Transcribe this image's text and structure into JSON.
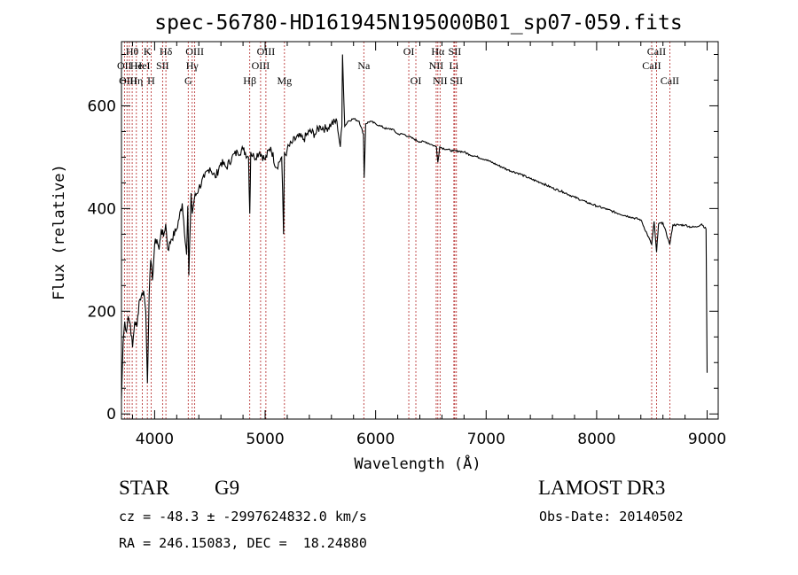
{
  "chart_data": {
    "type": "line",
    "title": "spec-56780-HD161945N195000B01_sp07-059.fits",
    "xlabel": "Wavelength (Å)",
    "ylabel": "Flux (relative)",
    "xlim": [
      3700,
      9100
    ],
    "ylim": [
      -10,
      725
    ],
    "xticks": [
      4000,
      5000,
      6000,
      7000,
      8000,
      9000
    ],
    "yticks": [
      0,
      200,
      400,
      600
    ],
    "grid": false,
    "series": [
      {
        "x": [
          3700,
          3715,
          3730,
          3745,
          3760,
          3780,
          3800,
          3820,
          3840,
          3860,
          3880,
          3900,
          3920,
          3935,
          3950,
          3965,
          3980,
          4000,
          4020,
          4040,
          4060,
          4080,
          4100,
          4120,
          4150,
          4200,
          4250,
          4290,
          4300,
          4310,
          4330,
          4340,
          4360,
          4400,
          4450,
          4500,
          4550,
          4600,
          4650,
          4700,
          4750,
          4800,
          4850,
          4861,
          4870,
          4900,
          4950,
          5000,
          5050,
          5100,
          5150,
          5167,
          5175,
          5183,
          5200,
          5250,
          5300,
          5350,
          5400,
          5450,
          5500,
          5550,
          5600,
          5650,
          5680,
          5695,
          5700,
          5720,
          5750,
          5800,
          5850,
          5890,
          5896,
          5910,
          5950,
          6000,
          6050,
          6100,
          6150,
          6200,
          6250,
          6300,
          6350,
          6400,
          6450,
          6500,
          6550,
          6563,
          6580,
          6600,
          6650,
          6700,
          6750,
          6800,
          6850,
          6900,
          7000,
          7100,
          7200,
          7300,
          7400,
          7500,
          7600,
          7700,
          7800,
          7900,
          8000,
          8100,
          8200,
          8300,
          8400,
          8498,
          8520,
          8542,
          8560,
          8600,
          8662,
          8690,
          8750,
          8800,
          8850,
          8900,
          8950,
          8990,
          9000
        ],
        "values": [
          30,
          140,
          180,
          160,
          190,
          175,
          130,
          180,
          170,
          220,
          230,
          240,
          200,
          60,
          230,
          300,
          260,
          330,
          340,
          320,
          360,
          345,
          370,
          320,
          340,
          360,
          410,
          310,
          405,
          270,
          430,
          390,
          420,
          440,
          460,
          480,
          460,
          490,
          480,
          500,
          510,
          515,
          500,
          390,
          510,
          500,
          510,
          495,
          520,
          480,
          500,
          350,
          510,
          505,
          515,
          530,
          540,
          535,
          550,
          545,
          560,
          555,
          565,
          570,
          520,
          560,
          700,
          560,
          570,
          575,
          570,
          545,
          460,
          565,
          570,
          565,
          560,
          555,
          555,
          545,
          545,
          540,
          535,
          530,
          530,
          525,
          520,
          490,
          520,
          518,
          515,
          512,
          512,
          510,
          505,
          502,
          495,
          485,
          475,
          468,
          458,
          450,
          440,
          432,
          422,
          413,
          405,
          398,
          390,
          384,
          378,
          330,
          375,
          315,
          370,
          372,
          330,
          368,
          368,
          368,
          364,
          364,
          370,
          360,
          80
        ]
      }
    ],
    "line_labels": [
      {
        "text": "Hθ",
        "x": 3797,
        "row": 1
      },
      {
        "text": "OII",
        "x": 3727,
        "row": 2
      },
      {
        "text": "OIII",
        "x": 3760,
        "row": 3
      },
      {
        "text": "He",
        "x": 3835,
        "row": 2
      },
      {
        "text": "Hη",
        "x": 3835,
        "row": 3
      },
      {
        "text": "K",
        "x": 3934,
        "row": 1
      },
      {
        "text": "HeI",
        "x": 3889,
        "row": 2
      },
      {
        "text": "H",
        "x": 3968,
        "row": 3
      },
      {
        "text": "SII",
        "x": 4072,
        "row": 2
      },
      {
        "text": "Hδ",
        "x": 4102,
        "row": 1
      },
      {
        "text": "OIII",
        "x": 4363,
        "row": 1
      },
      {
        "text": "Hγ",
        "x": 4340,
        "row": 2
      },
      {
        "text": "G",
        "x": 4304,
        "row": 3
      },
      {
        "text": "Hβ",
        "x": 4861,
        "row": 3
      },
      {
        "text": "OIII",
        "x": 5007,
        "row": 1
      },
      {
        "text": "OIII",
        "x": 4959,
        "row": 2
      },
      {
        "text": "Mg",
        "x": 5175,
        "row": 3
      },
      {
        "text": "Na",
        "x": 5893,
        "row": 2
      },
      {
        "text": "OI",
        "x": 6300,
        "row": 1
      },
      {
        "text": "OI",
        "x": 6364,
        "row": 3
      },
      {
        "text": "Hα",
        "x": 6563,
        "row": 1
      },
      {
        "text": "NII",
        "x": 6548,
        "row": 2
      },
      {
        "text": "NII",
        "x": 6583,
        "row": 3
      },
      {
        "text": "SII",
        "x": 6716,
        "row": 1
      },
      {
        "text": "Li",
        "x": 6708,
        "row": 2
      },
      {
        "text": "SII",
        "x": 6731,
        "row": 3
      },
      {
        "text": "CaII",
        "x": 8542,
        "row": 1
      },
      {
        "text": "CaII",
        "x": 8498,
        "row": 2
      },
      {
        "text": "CaII",
        "x": 8662,
        "row": 3
      }
    ],
    "line_marks": [
      3727,
      3750,
      3771,
      3797,
      3835,
      3889,
      3934,
      3968,
      4072,
      4102,
      4304,
      4340,
      4363,
      4861,
      4959,
      5007,
      5175,
      5893,
      6300,
      6364,
      6548,
      6563,
      6583,
      6708,
      6716,
      6731,
      8498,
      8542,
      8662
    ]
  },
  "info": {
    "class_label": "STAR",
    "subclass": "G9",
    "survey": "LAMOST DR3",
    "cz_line": "cz = -48.3 ± -2997624832.0 km/s",
    "obs_date": "Obs-Date: 20140502",
    "coords": "RA = 246.15083, DEC =  18.24880"
  },
  "colors": {
    "line_mark": "#b22222",
    "spectrum": "#000000"
  }
}
